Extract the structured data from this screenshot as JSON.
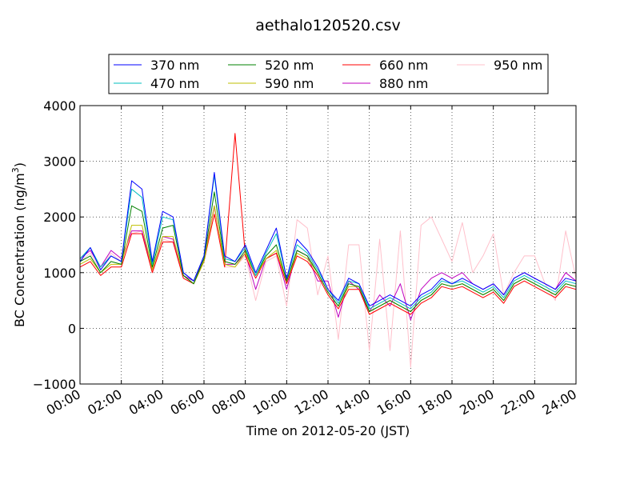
{
  "chart_data": {
    "type": "line",
    "title": "aethalo120520.csv",
    "xlabel": "Time on 2012-05-20 (JST)",
    "ylabel": "BC Concentration (ng/m³)",
    "ylabel_parts": {
      "main": "BC Concentration (ng/m",
      "sup": "3",
      "close": ")"
    },
    "xlim": [
      0,
      24
    ],
    "ylim": [
      -1000,
      4000
    ],
    "xtick_values": [
      0,
      2,
      4,
      6,
      8,
      10,
      12,
      14,
      16,
      18,
      20,
      22,
      24
    ],
    "xtick_labels": [
      "00:00",
      "02:00",
      "04:00",
      "06:00",
      "08:00",
      "10:00",
      "12:00",
      "14:00",
      "16:00",
      "18:00",
      "20:00",
      "22:00",
      "24:00"
    ],
    "ytick_values": [
      -1000,
      0,
      1000,
      2000,
      3000,
      4000
    ],
    "ytick_labels": [
      "−1000",
      "0",
      "1000",
      "2000",
      "3000",
      "4000"
    ],
    "grid": true,
    "legend_position": "top",
    "x_hours": [
      0,
      0.5,
      1,
      1.5,
      2,
      2.5,
      3,
      3.5,
      4,
      4.5,
      5,
      5.5,
      6,
      6.5,
      7,
      7.5,
      8,
      8.5,
      9,
      9.5,
      10,
      10.5,
      11,
      11.5,
      12,
      12.5,
      13,
      13.5,
      14,
      14.5,
      15,
      15.5,
      16,
      16.5,
      17,
      17.5,
      18,
      18.5,
      19,
      19.5,
      20,
      20.5,
      21,
      21.5,
      22,
      22.5,
      23,
      23.5,
      24
    ],
    "series": [
      {
        "name": "370 nm",
        "color": "#0000ff",
        "values": [
          1200,
          1450,
          1050,
          1300,
          1200,
          2650,
          2500,
          1200,
          2100,
          2000,
          1000,
          850,
          1300,
          2800,
          1300,
          1200,
          1500,
          1000,
          1400,
          1800,
          900,
          1600,
          1400,
          1100,
          700,
          500,
          900,
          800,
          400,
          500,
          600,
          500,
          400,
          600,
          700,
          900,
          800,
          900,
          800,
          700,
          800,
          600,
          900,
          1000,
          900,
          800,
          700,
          900,
          850
        ]
      },
      {
        "name": "470 nm",
        "color": "#00bfbf",
        "values": [
          1250,
          1450,
          1100,
          1300,
          1200,
          2500,
          2350,
          1150,
          2000,
          1950,
          1000,
          850,
          1300,
          2750,
          1250,
          1200,
          1450,
          950,
          1350,
          1700,
          900,
          1500,
          1350,
          1050,
          700,
          450,
          850,
          800,
          350,
          450,
          550,
          450,
          350,
          550,
          650,
          850,
          800,
          850,
          750,
          650,
          750,
          550,
          850,
          950,
          850,
          750,
          650,
          850,
          800
        ]
      },
      {
        "name": "520 nm",
        "color": "#008000",
        "values": [
          1200,
          1300,
          1000,
          1200,
          1150,
          2200,
          2100,
          1100,
          1800,
          1850,
          950,
          800,
          1250,
          2450,
          1200,
          1150,
          1400,
          950,
          1300,
          1500,
          850,
          1400,
          1300,
          1000,
          650,
          400,
          800,
          750,
          300,
          400,
          500,
          400,
          300,
          500,
          600,
          800,
          750,
          800,
          700,
          600,
          700,
          500,
          800,
          900,
          800,
          700,
          600,
          800,
          750
        ]
      },
      {
        "name": "590 nm",
        "color": "#bfbf00",
        "values": [
          1150,
          1250,
          1000,
          1150,
          1150,
          1850,
          1850,
          1050,
          1650,
          1650,
          950,
          800,
          1200,
          2200,
          1150,
          1100,
          1350,
          950,
          1250,
          1400,
          850,
          1350,
          1250,
          1000,
          650,
          400,
          750,
          750,
          300,
          400,
          500,
          400,
          300,
          500,
          600,
          800,
          750,
          800,
          700,
          600,
          700,
          500,
          800,
          900,
          800,
          700,
          600,
          800,
          750
        ]
      },
      {
        "name": "660 nm",
        "color": "#ff0000",
        "values": [
          1100,
          1200,
          950,
          1100,
          1100,
          1700,
          1700,
          1000,
          1550,
          1550,
          900,
          800,
          1200,
          2050,
          1100,
          3500,
          1300,
          900,
          1250,
          1350,
          800,
          1300,
          1200,
          950,
          600,
          350,
          700,
          700,
          250,
          350,
          450,
          350,
          250,
          450,
          550,
          750,
          700,
          750,
          650,
          550,
          650,
          450,
          750,
          850,
          750,
          650,
          550,
          750,
          700
        ]
      },
      {
        "name": "880 nm",
        "color": "#bf00bf",
        "values": [
          1250,
          1400,
          1100,
          1400,
          1250,
          1750,
          1750,
          1050,
          1650,
          1600,
          950,
          850,
          1250,
          2200,
          1150,
          1150,
          1350,
          700,
          1250,
          1350,
          700,
          1400,
          1300,
          850,
          850,
          200,
          850,
          700,
          300,
          600,
          400,
          800,
          150,
          700,
          900,
          1000,
          900,
          1000,
          800,
          700,
          800,
          600,
          900,
          1000,
          900,
          800,
          700,
          1000,
          850
        ]
      },
      {
        "name": "950 nm",
        "color": "#ffc0cb",
        "values": [
          1200,
          1350,
          1050,
          1350,
          1200,
          1700,
          1750,
          1000,
          1600,
          1550,
          900,
          800,
          1200,
          2150,
          1100,
          1100,
          1300,
          500,
          1200,
          1300,
          400,
          1950,
          1800,
          600,
          1300,
          -200,
          1500,
          1500,
          -400,
          1600,
          -400,
          1750,
          -700,
          1850,
          2000,
          1600,
          1200,
          1900,
          1000,
          1300,
          1700,
          600,
          1000,
          1300,
          1300,
          800,
          500,
          1750,
          900
        ]
      }
    ]
  }
}
